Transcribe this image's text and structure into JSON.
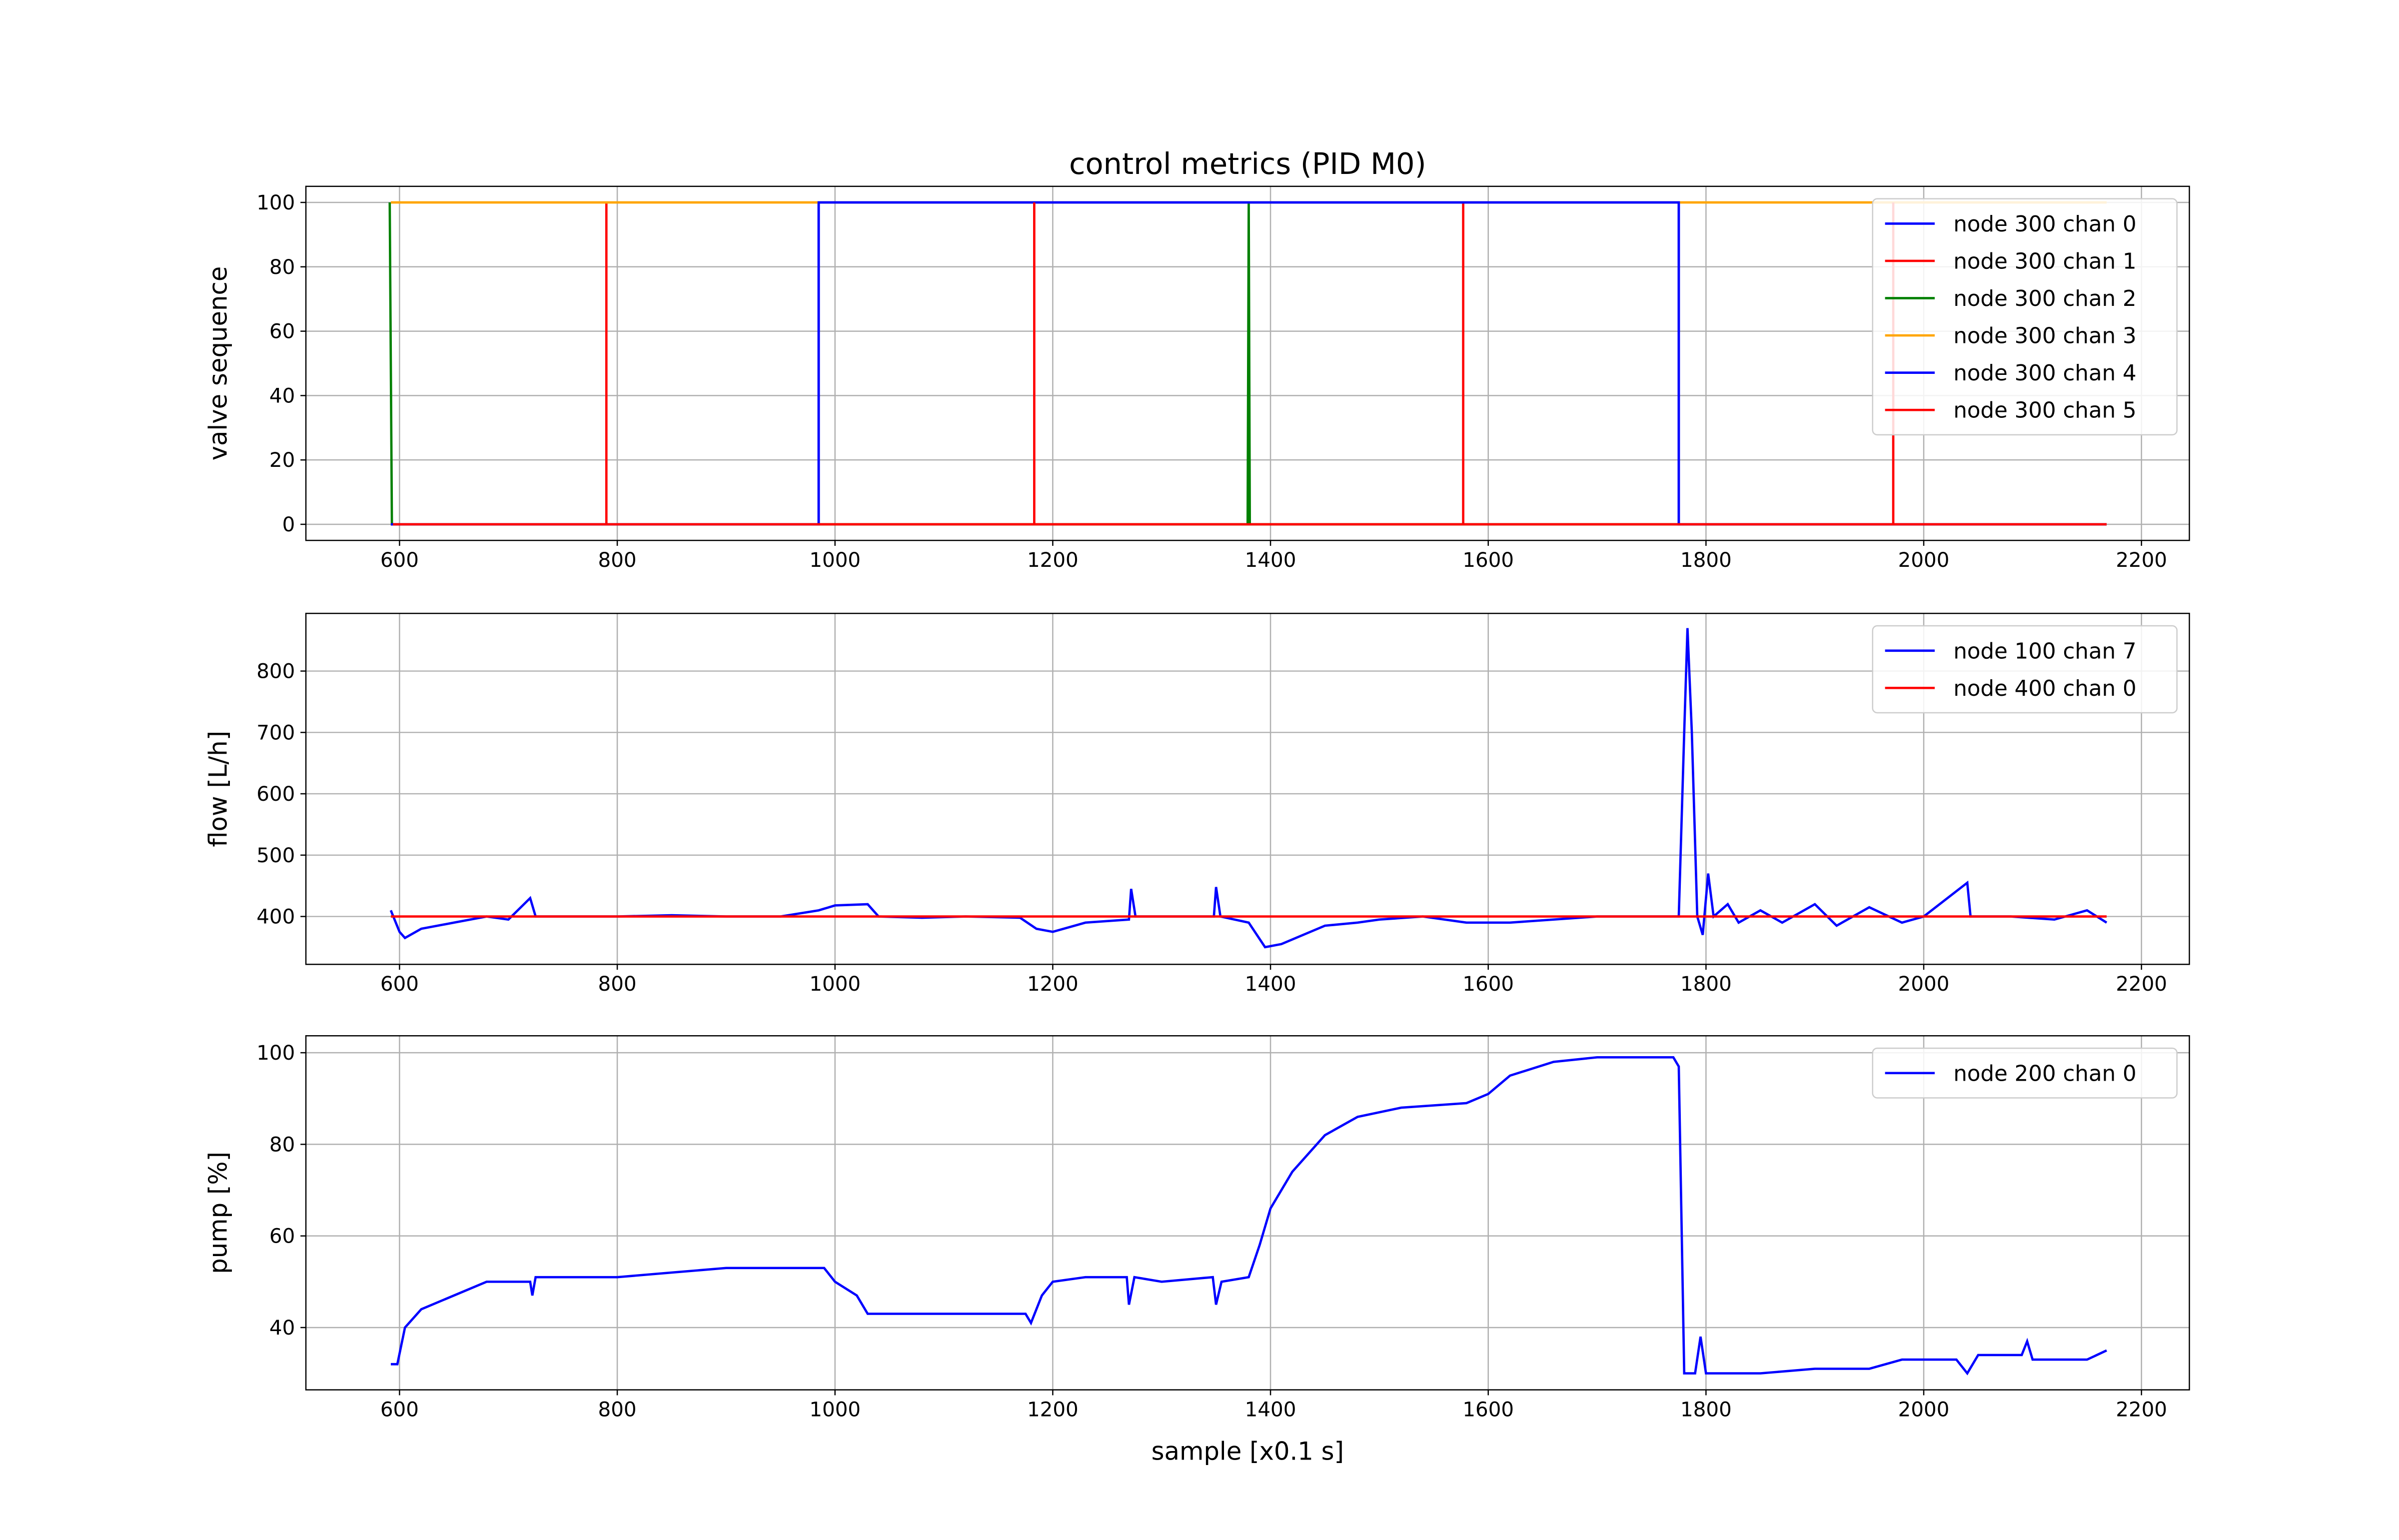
{
  "chart_data": [
    {
      "type": "line",
      "title": "control metrics (PID M0)",
      "ylabel": "valve sequence",
      "xlim": [
        514,
        2244
      ],
      "ylim": [
        -5,
        105
      ],
      "xticks": [
        600,
        800,
        1000,
        1200,
        1400,
        1600,
        1800,
        2000,
        2200
      ],
      "yticks": [
        0,
        20,
        40,
        60,
        80,
        100
      ],
      "grid": true,
      "legend": "upper right",
      "series": [
        {
          "name": "node 300 chan 0",
          "color": "#0000ff",
          "x": [
            592,
            985,
            985,
            1775,
            1775,
            2168
          ],
          "values": [
            0,
            0,
            100,
            100,
            0,
            0
          ]
        },
        {
          "name": "node 300 chan 1",
          "color": "#ff0000",
          "x": [
            592,
            790,
            790,
            790,
            1577,
            1577,
            1577,
            2168
          ],
          "values": [
            0,
            0,
            100,
            0,
            0,
            100,
            0,
            0
          ]
        },
        {
          "name": "node 300 chan 2",
          "color": "#008000",
          "x": [
            591,
            593,
            1379,
            1380,
            1381,
            2168
          ],
          "values": [
            100,
            0,
            0,
            100,
            0,
            0
          ]
        },
        {
          "name": "node 300 chan 3",
          "color": "#ffa500",
          "x": [
            592,
            2168
          ],
          "values": [
            100,
            100
          ]
        },
        {
          "name": "node 300 chan 4",
          "color": "#0000ff",
          "x": [
            592,
            985,
            985,
            1775,
            1775,
            2168
          ],
          "values": [
            0,
            0,
            100,
            100,
            0,
            0
          ]
        },
        {
          "name": "node 300 chan 5",
          "color": "#ff0000",
          "x": [
            594,
            1183,
            1183,
            1183,
            1972,
            1972,
            1972,
            2168
          ],
          "values": [
            0,
            0,
            100,
            0,
            0,
            100,
            0,
            0
          ]
        }
      ]
    },
    {
      "type": "line",
      "ylabel": "flow [L/h]",
      "xlim": [
        514,
        2244
      ],
      "ylim": [
        322,
        894
      ],
      "xticks": [
        600,
        800,
        1000,
        1200,
        1400,
        1600,
        1800,
        2000,
        2200
      ],
      "yticks": [
        400,
        500,
        600,
        700,
        800
      ],
      "grid": true,
      "legend": "upper right",
      "series": [
        {
          "name": "node 100 chan 7",
          "color": "#0000ff",
          "x": [
            592,
            600,
            605,
            620,
            650,
            680,
            700,
            720,
            725,
            760,
            800,
            850,
            900,
            950,
            985,
            1000,
            1030,
            1040,
            1080,
            1120,
            1170,
            1185,
            1200,
            1230,
            1270,
            1272,
            1276,
            1300,
            1348,
            1350,
            1354,
            1380,
            1395,
            1410,
            1430,
            1450,
            1480,
            1500,
            1540,
            1580,
            1620,
            1660,
            1700,
            1760,
            1775,
            1780,
            1783,
            1787,
            1792,
            1797,
            1802,
            1807,
            1820,
            1830,
            1850,
            1870,
            1900,
            1920,
            1950,
            1980,
            2000,
            2040,
            2043,
            2080,
            2120,
            2150,
            2168
          ],
          "values": [
            410,
            375,
            365,
            380,
            390,
            400,
            395,
            430,
            400,
            400,
            400,
            402,
            400,
            400,
            410,
            418,
            420,
            400,
            398,
            400,
            398,
            380,
            375,
            390,
            395,
            445,
            400,
            400,
            400,
            448,
            400,
            390,
            350,
            355,
            370,
            385,
            390,
            395,
            400,
            390,
            390,
            395,
            400,
            400,
            400,
            700,
            870,
            700,
            400,
            370,
            470,
            400,
            420,
            390,
            410,
            390,
            420,
            385,
            415,
            390,
            400,
            455,
            400,
            400,
            395,
            410,
            390
          ]
        },
        {
          "name": "node 400 chan 0",
          "color": "#ff0000",
          "x": [
            592,
            2168
          ],
          "values": [
            400,
            400
          ]
        }
      ]
    },
    {
      "type": "line",
      "ylabel": "pump [%]",
      "xlabel": "sample [x0.1 s]",
      "xlim": [
        514,
        2244
      ],
      "ylim": [
        26.4,
        103.7
      ],
      "xticks": [
        600,
        800,
        1000,
        1200,
        1400,
        1600,
        1800,
        2000,
        2200
      ],
      "yticks": [
        40,
        60,
        80,
        100
      ],
      "grid": true,
      "legend": "upper right",
      "series": [
        {
          "name": "node 200 chan 0",
          "color": "#0000ff",
          "x": [
            592,
            598,
            605,
            620,
            650,
            680,
            720,
            722,
            725,
            800,
            850,
            900,
            950,
            990,
            1000,
            1020,
            1030,
            1100,
            1175,
            1180,
            1190,
            1200,
            1230,
            1268,
            1270,
            1275,
            1300,
            1347,
            1350,
            1355,
            1380,
            1390,
            1400,
            1420,
            1450,
            1480,
            1520,
            1580,
            1600,
            1620,
            1660,
            1700,
            1770,
            1775,
            1780,
            1790,
            1795,
            1800,
            1850,
            1900,
            1950,
            1980,
            2030,
            2040,
            2050,
            2090,
            2095,
            2100,
            2150,
            2168
          ],
          "values": [
            32,
            32,
            40,
            44,
            47,
            50,
            50,
            47,
            51,
            51,
            52,
            53,
            53,
            53,
            50,
            47,
            43,
            43,
            43,
            41,
            47,
            50,
            51,
            51,
            45,
            51,
            50,
            51,
            45,
            50,
            51,
            58,
            66,
            74,
            82,
            86,
            88,
            89,
            91,
            95,
            98,
            99,
            99,
            97,
            30,
            30,
            38,
            30,
            30,
            31,
            31,
            33,
            33,
            30,
            34,
            34,
            37,
            33,
            33,
            35
          ]
        }
      ]
    }
  ]
}
